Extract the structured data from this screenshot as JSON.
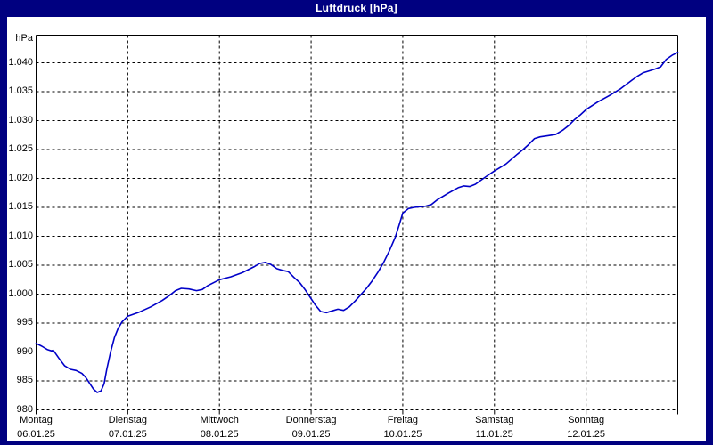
{
  "window": {
    "title": "Luftdruck [hPa]"
  },
  "colors": {
    "frame": "#000080",
    "titlebar_text": "#ffffff",
    "plot_background": "#ffffff",
    "grid": "#000000",
    "line": "#0000c8",
    "label_text": "#000000"
  },
  "chart_data": {
    "type": "line",
    "title": "Luftdruck [hPa]",
    "ylabel": "hPa",
    "y_unit_label": "hPa",
    "ylim": [
      980,
      1045
    ],
    "x_range_hours": [
      0,
      168
    ],
    "grid": "dashed",
    "legend_position": "none",
    "y_ticks": [
      {
        "v": 980,
        "label": "980"
      },
      {
        "v": 985,
        "label": "985"
      },
      {
        "v": 990,
        "label": "990"
      },
      {
        "v": 995,
        "label": "995"
      },
      {
        "v": 1000,
        "label": "1.000"
      },
      {
        "v": 1005,
        "label": "1.005"
      },
      {
        "v": 1010,
        "label": "1.010"
      },
      {
        "v": 1015,
        "label": "1.015"
      },
      {
        "v": 1020,
        "label": "1.020"
      },
      {
        "v": 1025,
        "label": "1.025"
      },
      {
        "v": 1030,
        "label": "1.030"
      },
      {
        "v": 1035,
        "label": "1.035"
      },
      {
        "v": 1040,
        "label": "1.040"
      }
    ],
    "days": [
      {
        "name": "Montag",
        "date": "06.01.25"
      },
      {
        "name": "Dienstag",
        "date": "07.01.25"
      },
      {
        "name": "Mittwoch",
        "date": "08.01.25"
      },
      {
        "name": "Donnerstag",
        "date": "09.01.25"
      },
      {
        "name": "Freitag",
        "date": "10.01.25"
      },
      {
        "name": "Samstag",
        "date": "11.01.25"
      },
      {
        "name": "Sonntag",
        "date": "12.01.25"
      }
    ],
    "series": [
      {
        "name": "Luftdruck",
        "unit": "hPa",
        "color": "#0000c8",
        "x_unit": "hours_from_monday_00",
        "points": [
          [
            0,
            991.5
          ],
          [
            1.5,
            991.0
          ],
          [
            3,
            990.4
          ],
          [
            4,
            990.2
          ],
          [
            4.5,
            990.3
          ],
          [
            6,
            988.9
          ],
          [
            7.5,
            987.6
          ],
          [
            9,
            987.0
          ],
          [
            10.5,
            986.8
          ],
          [
            12,
            986.3
          ],
          [
            13,
            985.6
          ],
          [
            14,
            984.6
          ],
          [
            15,
            983.6
          ],
          [
            16,
            983.0
          ],
          [
            17,
            983.3
          ],
          [
            17.8,
            984.5
          ],
          [
            18.5,
            987.0
          ],
          [
            19.5,
            990.0
          ],
          [
            20.5,
            992.5
          ],
          [
            21.5,
            994.1
          ],
          [
            22.5,
            995.2
          ],
          [
            24,
            996.2
          ],
          [
            27,
            996.9
          ],
          [
            30,
            997.8
          ],
          [
            33,
            998.9
          ],
          [
            35,
            999.8
          ],
          [
            36.5,
            1000.6
          ],
          [
            38,
            1001.0
          ],
          [
            40,
            1000.9
          ],
          [
            42,
            1000.6
          ],
          [
            43.5,
            1000.8
          ],
          [
            45,
            1001.5
          ],
          [
            48,
            1002.5
          ],
          [
            51,
            1003.0
          ],
          [
            54,
            1003.7
          ],
          [
            57,
            1004.7
          ],
          [
            58.5,
            1005.3
          ],
          [
            60,
            1005.5
          ],
          [
            61.5,
            1005.1
          ],
          [
            63,
            1004.4
          ],
          [
            64.5,
            1004.1
          ],
          [
            66,
            1003.9
          ],
          [
            67.5,
            1002.9
          ],
          [
            69,
            1002.0
          ],
          [
            70.5,
            1000.7
          ],
          [
            72,
            999.2
          ],
          [
            73,
            998.2
          ],
          [
            74.5,
            997.0
          ],
          [
            76,
            996.8
          ],
          [
            77.5,
            997.1
          ],
          [
            79,
            997.4
          ],
          [
            80.5,
            997.2
          ],
          [
            82,
            997.8
          ],
          [
            83.5,
            998.8
          ],
          [
            85,
            999.9
          ],
          [
            86.5,
            1001.0
          ],
          [
            88,
            1002.3
          ],
          [
            89.5,
            1003.8
          ],
          [
            91,
            1005.5
          ],
          [
            92.5,
            1007.5
          ],
          [
            94,
            1009.8
          ],
          [
            95,
            1011.8
          ],
          [
            96,
            1014.0
          ],
          [
            97.5,
            1014.8
          ],
          [
            99,
            1015.0
          ],
          [
            100.5,
            1015.1
          ],
          [
            102,
            1015.2
          ],
          [
            103.5,
            1015.5
          ],
          [
            105,
            1016.3
          ],
          [
            108,
            1017.5
          ],
          [
            110.5,
            1018.4
          ],
          [
            112,
            1018.7
          ],
          [
            113.5,
            1018.6
          ],
          [
            115,
            1019.0
          ],
          [
            116.5,
            1019.7
          ],
          [
            118,
            1020.4
          ],
          [
            120,
            1021.3
          ],
          [
            123,
            1022.5
          ],
          [
            126,
            1024.2
          ],
          [
            127.5,
            1025.0
          ],
          [
            129,
            1025.9
          ],
          [
            130.5,
            1026.9
          ],
          [
            132,
            1027.2
          ],
          [
            134,
            1027.4
          ],
          [
            136,
            1027.6
          ],
          [
            138,
            1028.4
          ],
          [
            139.5,
            1029.2
          ],
          [
            141,
            1030.2
          ],
          [
            142.5,
            1031.0
          ],
          [
            144,
            1031.9
          ],
          [
            147,
            1033.2
          ],
          [
            150,
            1034.3
          ],
          [
            153,
            1035.5
          ],
          [
            156,
            1037.0
          ],
          [
            157.5,
            1037.7
          ],
          [
            159,
            1038.3
          ],
          [
            160.5,
            1038.6
          ],
          [
            162,
            1038.9
          ],
          [
            163.5,
            1039.3
          ],
          [
            165,
            1040.6
          ],
          [
            166.5,
            1041.3
          ],
          [
            168,
            1041.8
          ]
        ]
      }
    ]
  }
}
